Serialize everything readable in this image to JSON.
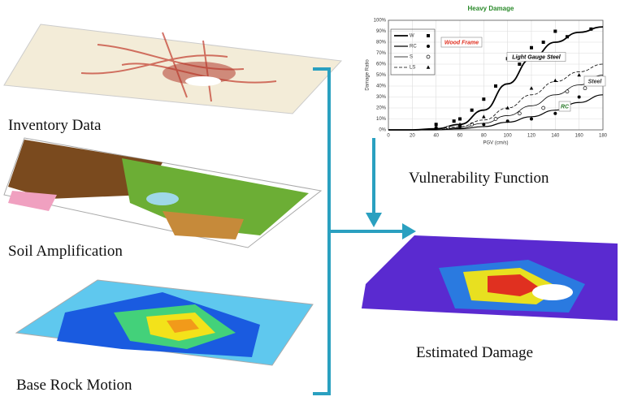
{
  "labels": {
    "inventory": "Inventory Data",
    "soil": "Soil Amplification",
    "base_rock": "Base Rock Motion",
    "vulnerability": "Vulnerability Function",
    "estimated": "Estimated Damage"
  },
  "chart_data": {
    "type": "line",
    "title": "Heavy Damage",
    "x_label": "PGV (cm/s)",
    "y_label": "Damage Ratio",
    "xlim": [
      0,
      180
    ],
    "xticks": [
      0,
      20,
      40,
      60,
      80,
      100,
      120,
      140,
      160,
      180
    ],
    "ylim": [
      0,
      100
    ],
    "yticks": [
      {
        "value": 0,
        "label": "0%"
      },
      {
        "value": 10,
        "label": "10%"
      },
      {
        "value": 20,
        "label": "20%"
      },
      {
        "value": 30,
        "label": "30%"
      },
      {
        "value": 40,
        "label": "40%"
      },
      {
        "value": 50,
        "label": "50%"
      },
      {
        "value": 60,
        "label": "60%"
      },
      {
        "value": 70,
        "label": "70%"
      },
      {
        "value": 80,
        "label": "80%"
      },
      {
        "value": 90,
        "label": "90%"
      },
      {
        "value": 100,
        "label": "100%"
      }
    ],
    "x": [
      0,
      20,
      40,
      60,
      80,
      100,
      120,
      140,
      160,
      180
    ],
    "series": [
      {
        "name": "W",
        "color": "#000000",
        "line_style": "solid",
        "marker": "square",
        "values": [
          0,
          0,
          1,
          5,
          18,
          42,
          65,
          80,
          89,
          94
        ],
        "points_x": [
          40,
          50,
          55,
          60,
          70,
          80,
          90,
          100,
          110,
          120,
          130,
          140,
          150,
          170
        ],
        "points_y": [
          5,
          2,
          8,
          10,
          18,
          28,
          40,
          65,
          60,
          75,
          80,
          90,
          85,
          92
        ]
      },
      {
        "name": "RC",
        "color": "#000000",
        "line_style": "solid",
        "marker": "circle",
        "values": [
          0,
          0,
          0,
          1,
          3,
          7,
          12,
          18,
          25,
          32
        ],
        "points_x": [
          40,
          60,
          80,
          100,
          120,
          140,
          160
        ],
        "points_y": [
          2,
          3,
          5,
          8,
          10,
          15,
          30
        ]
      },
      {
        "name": "S",
        "color": "#000000",
        "line_style": "solid",
        "marker": "open-circle",
        "values": [
          0,
          0,
          0,
          2,
          6,
          13,
          22,
          32,
          41,
          50
        ],
        "points_x": [
          50,
          70,
          90,
          110,
          130,
          150,
          165
        ],
        "points_y": [
          2,
          5,
          10,
          15,
          20,
          35,
          38
        ]
      },
      {
        "name": "LS",
        "color": "#000000",
        "line_style": "dashed",
        "marker": "triangle",
        "values": [
          0,
          0,
          0,
          3,
          9,
          20,
          32,
          44,
          53,
          60
        ],
        "points_x": [
          60,
          80,
          100,
          120,
          140,
          160
        ],
        "points_y": [
          5,
          12,
          20,
          38,
          45,
          50
        ]
      }
    ],
    "annotations": [
      {
        "text": "Wood Frame",
        "color": "#e03020"
      },
      {
        "text": "Light Gauge Steel",
        "color": "#000000"
      },
      {
        "text": "Steel",
        "color": "#333333"
      },
      {
        "text": "RC",
        "color": "#2a7a2a"
      }
    ]
  }
}
